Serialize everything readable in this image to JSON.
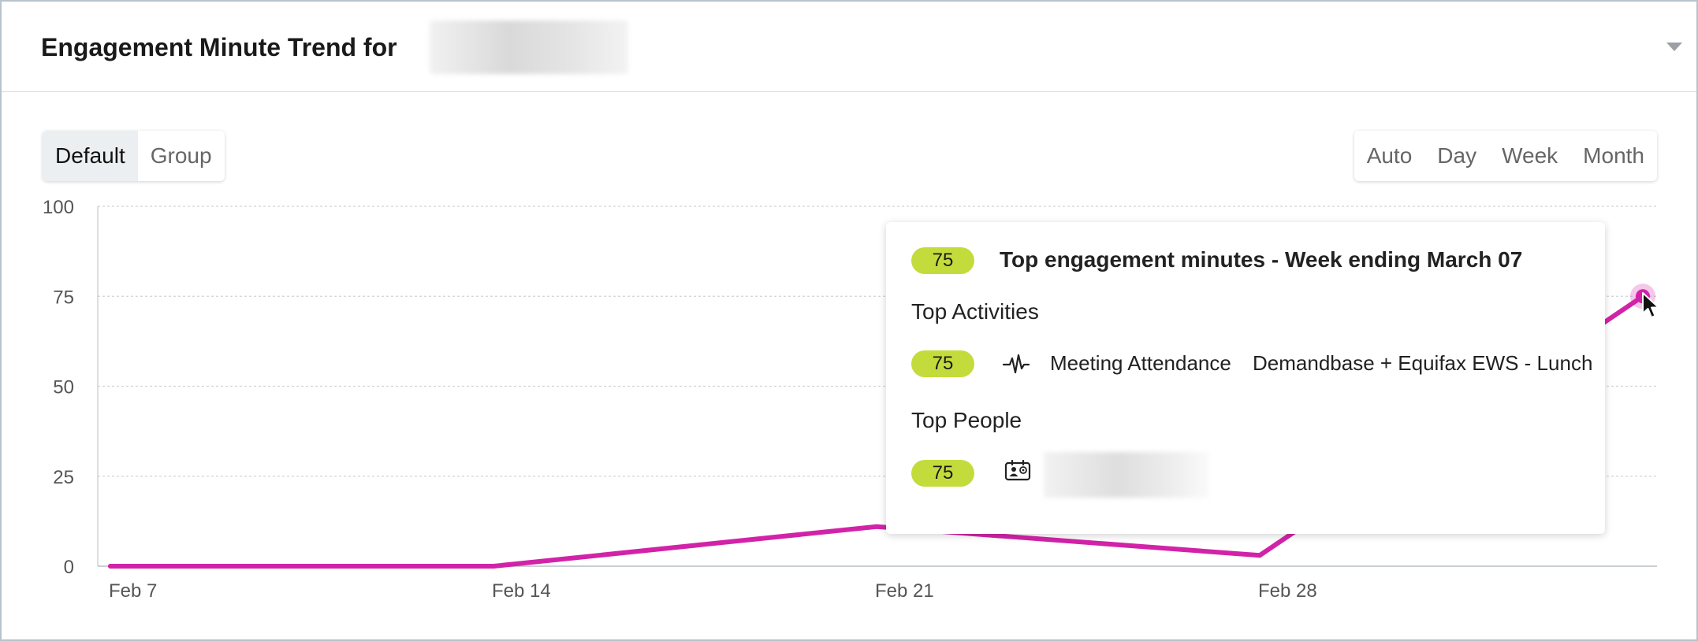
{
  "header": {
    "title": "Engagement Minute Trend for"
  },
  "view_toggle": {
    "options": [
      "Default",
      "Group"
    ],
    "selected": "Default"
  },
  "granularity": {
    "options": [
      "Auto",
      "Day",
      "Week",
      "Month"
    ]
  },
  "tooltip": {
    "value": "75",
    "title": "Top engagement minutes - Week ending March 07",
    "activities_heading": "Top Activities",
    "activities": [
      {
        "value": "75",
        "icon": "pulse-icon",
        "type": "Meeting Attendance",
        "name": "Demandbase + Equifax EWS - Lunch"
      }
    ],
    "people_heading": "Top People",
    "people": [
      {
        "value": "75",
        "icon": "contact-card-icon"
      }
    ]
  },
  "colors": {
    "line": "#d223a8",
    "pill": "#c3dc3c",
    "grid": "#cfd4d8"
  },
  "chart_data": {
    "type": "line",
    "x": [
      "Feb 7",
      "Feb 14",
      "Feb 21",
      "Feb 24",
      "Feb 28",
      "Mar 7"
    ],
    "values": [
      0,
      0,
      11,
      8,
      3,
      75
    ],
    "x_ticks": [
      "Feb 7",
      "Feb 14",
      "Feb 21",
      "Feb 28"
    ],
    "y_ticks": [
      0,
      25,
      50,
      75,
      100
    ],
    "ylim": [
      0,
      100
    ],
    "grid": true,
    "highlighted_point": {
      "x": "Mar 7",
      "y": 75
    }
  }
}
